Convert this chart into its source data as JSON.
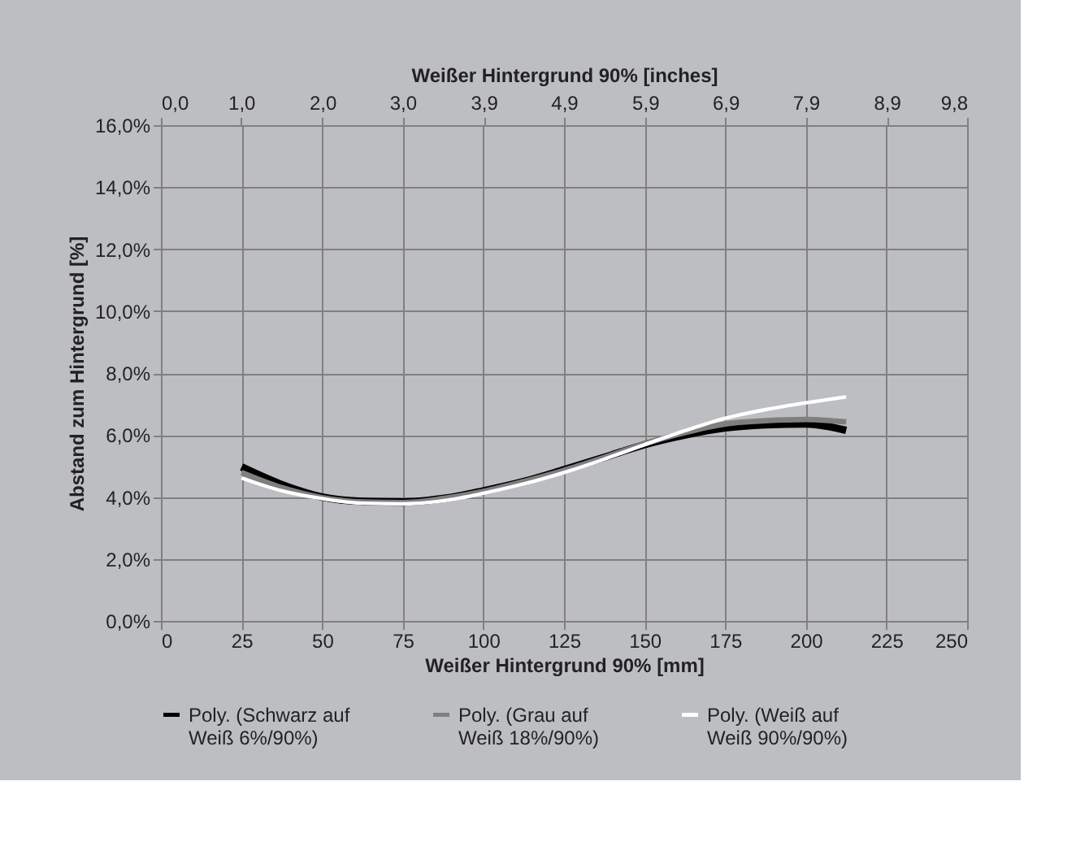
{
  "chart_data": {
    "type": "line",
    "xlabel": "Weißer Hintergrund 90% [mm]",
    "ylabel": "Abstand zum Hintergrund [%]",
    "x2label": "Weißer Hintergrund 90% [inches]",
    "x": [
      25,
      37.5,
      50,
      62.5,
      75,
      87.5,
      100,
      112.5,
      125,
      137.5,
      150,
      162.5,
      175,
      187.5,
      200,
      212.5
    ],
    "series": [
      {
        "name": "Poly. (Schwarz auf Weiß 6%/90%)",
        "color": "#000000",
        "values": [
          4.97,
          4.4,
          4.0,
          3.86,
          3.84,
          3.95,
          4.2,
          4.5,
          4.88,
          5.28,
          5.69,
          6.0,
          6.23,
          6.33,
          6.36,
          6.15
        ]
      },
      {
        "name": "Poly. (Grau auf Weiß 18%/90%)",
        "color": "#7f7f7f",
        "values": [
          4.79,
          4.3,
          3.98,
          3.84,
          3.82,
          3.95,
          4.18,
          4.5,
          4.86,
          5.28,
          5.72,
          6.08,
          6.36,
          6.46,
          6.5,
          6.42
        ]
      },
      {
        "name": "Poly. (Weiß auf Weiß 90%/90%)",
        "color": "#ffffff",
        "values": [
          4.61,
          4.2,
          3.95,
          3.8,
          3.78,
          3.88,
          4.12,
          4.42,
          4.79,
          5.22,
          5.69,
          6.14,
          6.54,
          6.82,
          7.04,
          7.23
        ]
      }
    ],
    "xlim": [
      0,
      250
    ],
    "xticks": [
      0,
      25,
      50,
      75,
      100,
      125,
      150,
      175,
      200,
      225,
      250
    ],
    "x2lim": [
      0,
      9.84
    ],
    "x2ticks": [
      {
        "value": 0,
        "label": "0,0"
      },
      {
        "value": 0.98,
        "label": "1,0"
      },
      {
        "value": 1.97,
        "label": "2,0"
      },
      {
        "value": 2.95,
        "label": "3,0"
      },
      {
        "value": 3.94,
        "label": "3,9"
      },
      {
        "value": 4.92,
        "label": "4,9"
      },
      {
        "value": 5.91,
        "label": "5,9"
      },
      {
        "value": 6.89,
        "label": "6,9"
      },
      {
        "value": 7.87,
        "label": "7,9"
      },
      {
        "value": 8.86,
        "label": "8,9"
      },
      {
        "value": 9.84,
        "label": "9,8"
      }
    ],
    "ylim": [
      0,
      16
    ],
    "yticks": [
      {
        "value": 0,
        "label": "0,0%"
      },
      {
        "value": 2,
        "label": "2,0%"
      },
      {
        "value": 4,
        "label": "4,0%"
      },
      {
        "value": 6,
        "label": "6,0%"
      },
      {
        "value": 8,
        "label": "8,0%"
      },
      {
        "value": 10,
        "label": "10,0%"
      },
      {
        "value": 12,
        "label": "12,0%"
      },
      {
        "value": 14,
        "label": "14,0%"
      },
      {
        "value": 16,
        "label": "16,0%"
      }
    ],
    "grid": true,
    "legend": "bottom",
    "line_style": "solid",
    "marker": "none"
  }
}
